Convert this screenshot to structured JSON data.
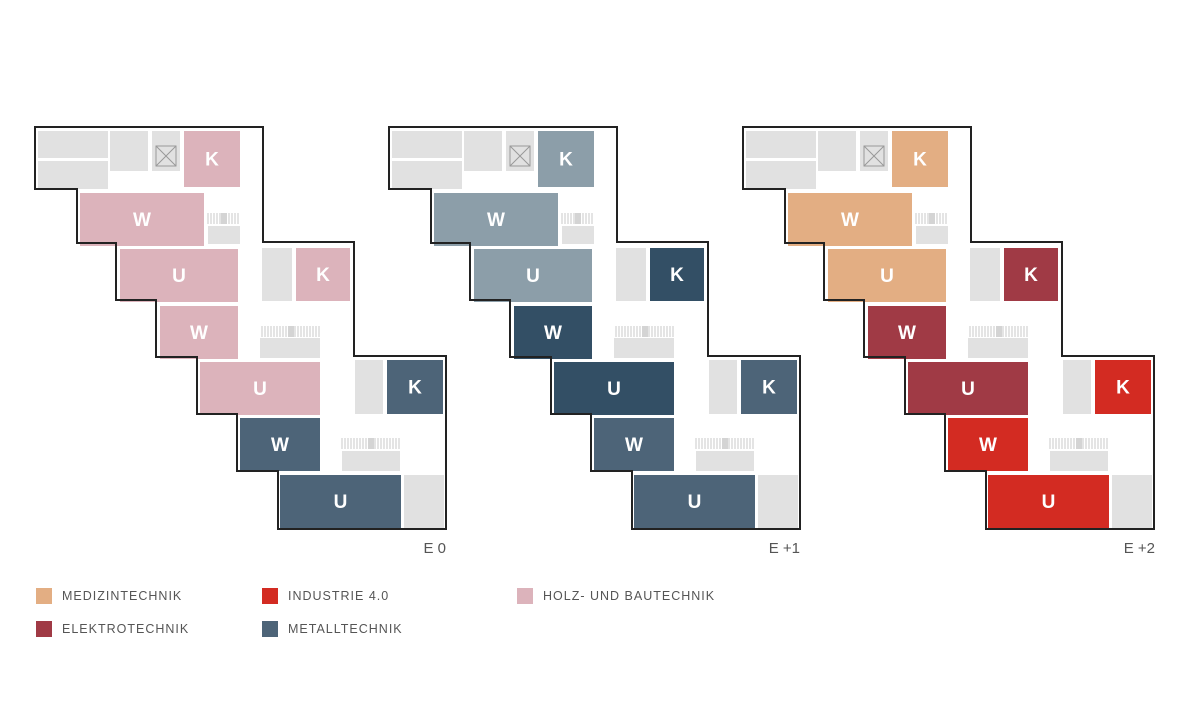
{
  "plans": [
    {
      "label": "E 0",
      "rooms": [
        {
          "letter": "K",
          "program": "holz"
        },
        {
          "letter": "W",
          "program": "holz"
        },
        {
          "letter": "U",
          "program": "holz"
        },
        {
          "letter": "K",
          "program": "holz"
        },
        {
          "letter": "W",
          "program": "holz"
        },
        {
          "letter": "U",
          "program": "holz"
        },
        {
          "letter": "K",
          "program": "metall"
        },
        {
          "letter": "W",
          "program": "metall"
        },
        {
          "letter": "U",
          "program": "metall"
        }
      ]
    },
    {
      "label": "E +1",
      "rooms": [
        {
          "letter": "K",
          "program": "metall_light"
        },
        {
          "letter": "W",
          "program": "metall_light"
        },
        {
          "letter": "U",
          "program": "metall_light"
        },
        {
          "letter": "K",
          "program": "metall_dark"
        },
        {
          "letter": "W",
          "program": "metall_dark"
        },
        {
          "letter": "U",
          "program": "metall_dark"
        },
        {
          "letter": "K",
          "program": "metall"
        },
        {
          "letter": "W",
          "program": "metall"
        },
        {
          "letter": "U",
          "program": "metall"
        }
      ]
    },
    {
      "label": "E +2",
      "rooms": [
        {
          "letter": "K",
          "program": "medizin"
        },
        {
          "letter": "W",
          "program": "medizin"
        },
        {
          "letter": "U",
          "program": "medizin"
        },
        {
          "letter": "K",
          "program": "elektro"
        },
        {
          "letter": "W",
          "program": "elektro"
        },
        {
          "letter": "U",
          "program": "elektro"
        },
        {
          "letter": "K",
          "program": "industrie"
        },
        {
          "letter": "W",
          "program": "industrie"
        },
        {
          "letter": "U",
          "program": "industrie"
        }
      ]
    }
  ],
  "colors": {
    "holz": "#dcb3bb",
    "metall": "#4d6478",
    "metall_light": "#8c9ea9",
    "metall_dark": "#334f65",
    "medizin": "#e3ae83",
    "elektro": "#a03a45",
    "industrie": "#d32b22",
    "neutral": "#e1e1e1",
    "outline": "#222222"
  },
  "legend": [
    {
      "label": "MEDIZINTECHNIK",
      "color": "#e3ae83"
    },
    {
      "label": "INDUSTRIE 4.0",
      "color": "#d32b22"
    },
    {
      "label": "HOLZ- UND BAUTECHNIK",
      "color": "#dcb3bb"
    },
    {
      "label": "ELEKTROTECHNIK",
      "color": "#a03a45"
    },
    {
      "label": "METALLTECHNIK",
      "color": "#4d6478"
    }
  ]
}
